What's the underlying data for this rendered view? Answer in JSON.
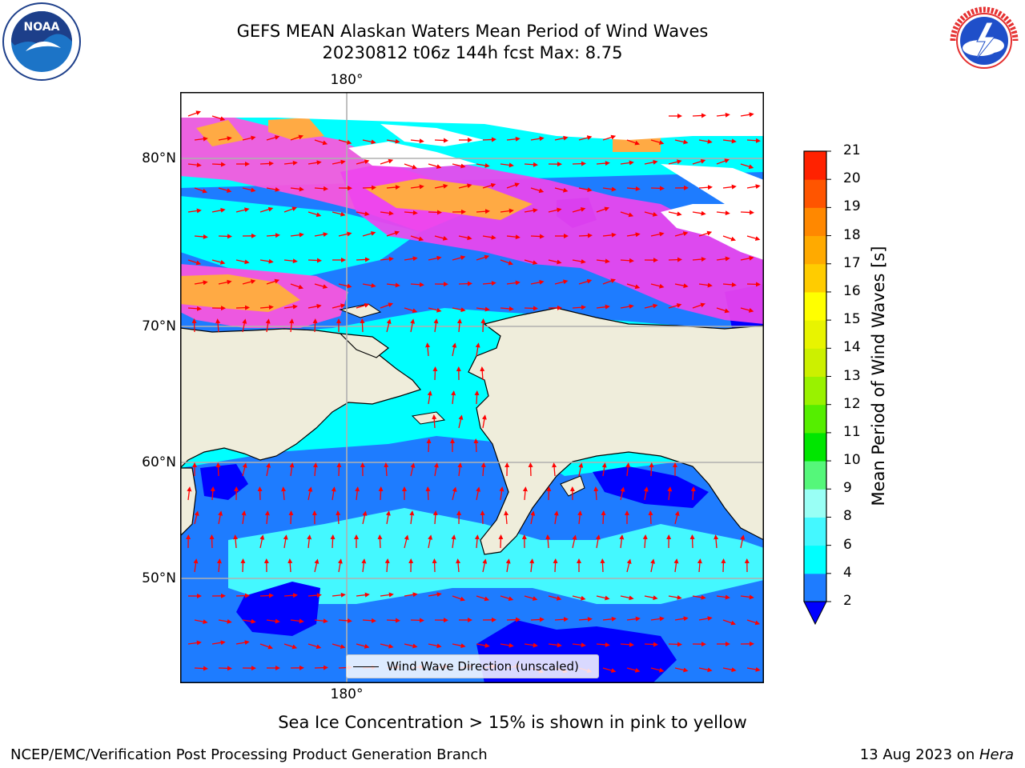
{
  "title_line1": "GEFS MEAN Alaskan Waters Mean Period of Wind Waves",
  "title_line2": "20230812 t06z 144h fcst   Max: 8.75",
  "lon_labels": {
    "top": "180°",
    "bottom": "180°"
  },
  "lat_labels": [
    "80°N",
    "70°N",
    "60°N",
    "50°N"
  ],
  "legend_label": "Wind Wave Direction (unscaled)",
  "colorbar": {
    "title": "Mean Period of Wind Waves [s]",
    "ticks": [
      "2",
      "4",
      "6",
      "8",
      "9",
      "10",
      "11",
      "12",
      "13",
      "14",
      "15",
      "16",
      "17",
      "18",
      "19",
      "20",
      "21"
    ],
    "colors": [
      "#1e7cff",
      "#00ffff",
      "#44f8ff",
      "#99fff5",
      "#55f77a",
      "#00e600",
      "#55ee00",
      "#99f200",
      "#ccf000",
      "#e8f400",
      "#ffff00",
      "#ffcc00",
      "#ffaa00",
      "#ff8800",
      "#ff5500",
      "#ff2200",
      "#ff0000"
    ],
    "extend_color": "#0000ff"
  },
  "caption": "Sea Ice Concentration > 15% is shown in pink to yellow",
  "footer_left": "NCEP/EMC/Verification Post Processing Product Generation Branch",
  "footer_right_date": "13 Aug 2023 on ",
  "footer_right_host": "Hera",
  "colors": {
    "land": "#efeddb",
    "ocean_deep": "#0000ff",
    "ocean_mid": "#1e7cff",
    "ocean_light": "#00ffff",
    "ocean_pale": "#44f0ff",
    "ice_pink": "#ff55dd",
    "ice_magenta": "#ee44ee",
    "ice_orange": "#ffaa44",
    "arrow": "#ff0000"
  }
}
